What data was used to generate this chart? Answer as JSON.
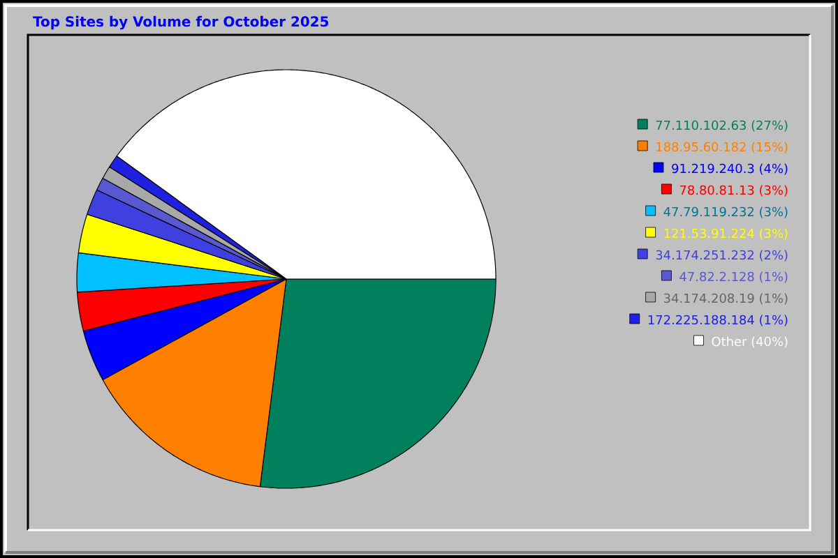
{
  "chart_data": {
    "type": "pie",
    "title": "Top Sites by Volume for October 2025",
    "categories": [
      "77.110.102.63",
      "188.95.60.182",
      "91.219.240.3",
      "78.80.81.13",
      "47.79.119.232",
      "121.53.91.224",
      "34.174.251.232",
      "47.82.2.128",
      "34.174.208.19",
      "172.225.188.184",
      "Other"
    ],
    "values": [
      27,
      15,
      4,
      3,
      3,
      3,
      2,
      1,
      1,
      1,
      40
    ],
    "value_labels": [
      "(27%)",
      "(15%)",
      "(4%)",
      "(3%)",
      "(3%)",
      "(3%)",
      "(2%)",
      "(1%)",
      "(1%)",
      "(1%)",
      "(40%)"
    ],
    "colors": [
      "#00805c",
      "#ff8000",
      "#0000ff",
      "#ff0000",
      "#00c0ff",
      "#ffff00",
      "#4040e0",
      "#5858d0",
      "#a8a8a8",
      "#2020e0",
      "#ffffff"
    ],
    "legend": "right"
  }
}
